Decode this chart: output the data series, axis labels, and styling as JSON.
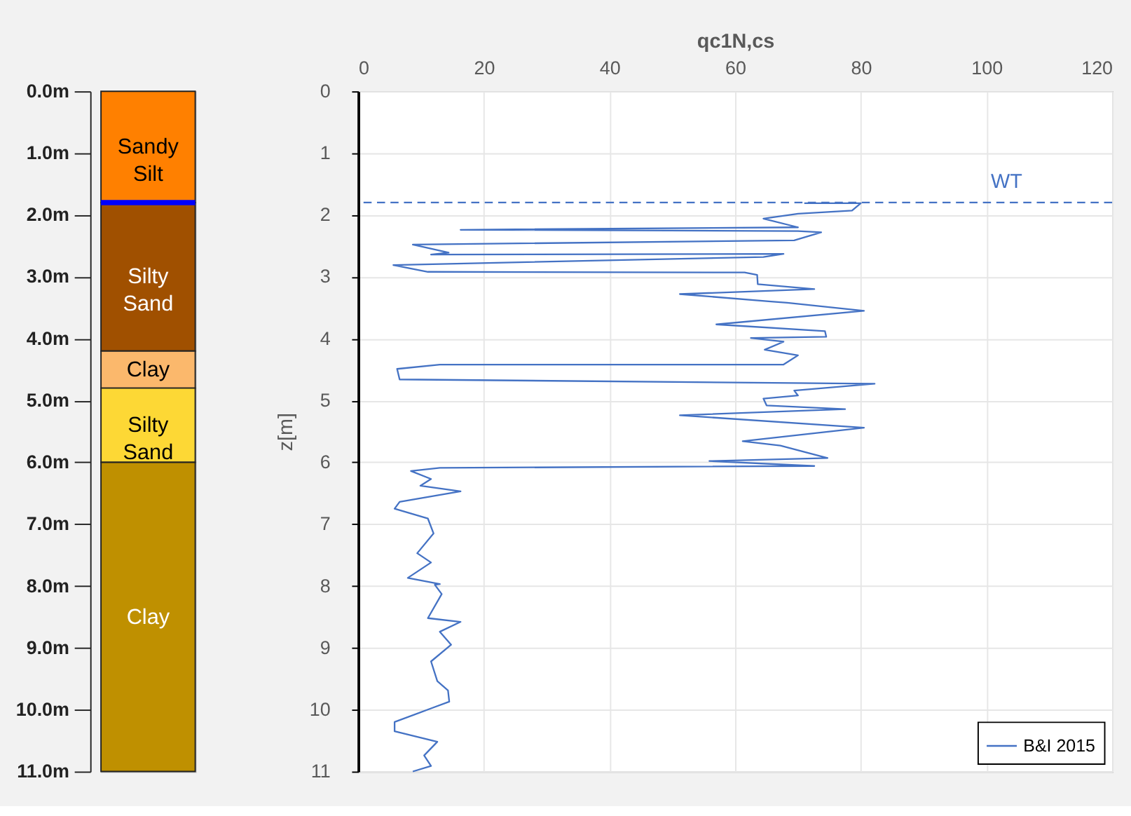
{
  "chart_data": [
    {
      "type": "bar",
      "stacked": true,
      "categories": [
        null
      ],
      "series": [
        {
          "name": "Sandy Silt",
          "color": "#ff8000",
          "values": [
            1.8
          ]
        },
        {
          "name": "Silty Sand",
          "color": "#a05000",
          "values": [
            2.4
          ]
        },
        {
          "name": "Clay",
          "color": "#fbb86c",
          "values": [
            0.6
          ]
        },
        {
          "name": "Silty Sand",
          "color": "#fdd835",
          "values": [
            1.2
          ]
        },
        {
          "name": "Clay",
          "color": "#bf9000",
          "values": [
            5.0
          ]
        }
      ],
      "ylim": [
        11,
        0
      ],
      "yticks": [
        {
          "value": 0,
          "label": "0.0m"
        },
        {
          "value": 1,
          "label": "1.0m"
        },
        {
          "value": 2,
          "label": "2.0m"
        },
        {
          "value": 3,
          "label": "3.0m"
        },
        {
          "value": 4,
          "label": "4.0m"
        },
        {
          "value": 5,
          "label": "5.0m"
        },
        {
          "value": 6,
          "label": "6.0m"
        },
        {
          "value": 7,
          "label": "7.0m"
        },
        {
          "value": 8,
          "label": "8.0m"
        },
        {
          "value": 9,
          "label": "9.0m"
        },
        {
          "value": 10,
          "label": "10.0m"
        },
        {
          "value": 11,
          "label": "11.0m"
        }
      ],
      "ref_lines": [
        {
          "axis": "y",
          "value": 1.8,
          "color": "#0000ff"
        }
      ],
      "tick_labels": "y",
      "grid": false
    },
    {
      "type": "line",
      "xlabel": "qc1N,cs",
      "ylabel": "z[m]",
      "xlim": [
        0,
        120
      ],
      "xticks": [
        0,
        20,
        40,
        60,
        80,
        100,
        120
      ],
      "ylim": [
        11,
        0
      ],
      "yticks": [
        0,
        1,
        2,
        3,
        4,
        5,
        6,
        7,
        8,
        9,
        10,
        11
      ],
      "grid": true,
      "legend": "bottom right",
      "ref_lines": [
        {
          "axis": "y",
          "value": 1.8,
          "label": "WT",
          "color": "#4472c4",
          "line_style": "dashed"
        }
      ],
      "series": [
        {
          "name": "B&I 2015",
          "color": "#4472c4",
          "x": [
            71,
            80,
            78.6,
            70,
            64.5,
            70,
            16.3,
            70,
            73.7,
            69.4,
            8.7,
            14.4,
            11.6,
            67.7,
            64.5,
            5.6,
            11.1,
            61.5,
            63.5,
            63.6,
            72.6,
            51.2,
            65.7,
            68.3,
            80.5,
            57,
            74.3,
            74.5,
            62.5,
            67.7,
            64.7,
            70,
            67.7,
            13,
            6.2,
            6.6,
            82.2,
            69.4,
            70,
            64.5,
            65,
            77.5,
            51.2,
            80.5,
            61.2,
            67.2,
            74.7,
            55.9,
            72.6,
            13,
            8.4,
            11.6,
            9.9,
            16.3,
            6.6,
            5.8,
            11.1,
            12,
            9.4,
            11.6,
            7.9,
            13,
            12.2,
            13.3,
            11.1,
            16.3,
            13,
            14.8,
            11.6,
            12.6,
            14.3,
            14.5,
            11.6,
            5.8,
            5.8,
            12.6,
            10.5,
            11.6,
            8.7
          ],
          "values": [
            1.81,
            1.81,
            1.93,
            1.98,
            2.06,
            2.2,
            2.24,
            2.26,
            2.28,
            2.41,
            2.48,
            2.61,
            2.64,
            2.63,
            2.68,
            2.81,
            2.92,
            2.93,
            2.97,
            3.12,
            3.2,
            3.28,
            3.4,
            3.42,
            3.55,
            3.77,
            3.88,
            3.97,
            3.99,
            4.05,
            4.18,
            4.27,
            4.42,
            4.42,
            4.49,
            4.66,
            4.73,
            4.84,
            4.92,
            4.97,
            5.08,
            5.14,
            5.24,
            5.44,
            5.66,
            5.73,
            5.93,
            5.98,
            6.06,
            6.09,
            6.14,
            6.27,
            6.38,
            6.47,
            6.64,
            6.75,
            6.91,
            7.15,
            7.47,
            7.62,
            7.87,
            7.97,
            7.98,
            8.13,
            8.52,
            8.58,
            8.74,
            8.95,
            9.22,
            9.54,
            9.69,
            9.87,
            9.98,
            10.2,
            10.35,
            10.52,
            10.74,
            10.91,
            11.0
          ]
        }
      ]
    }
  ]
}
